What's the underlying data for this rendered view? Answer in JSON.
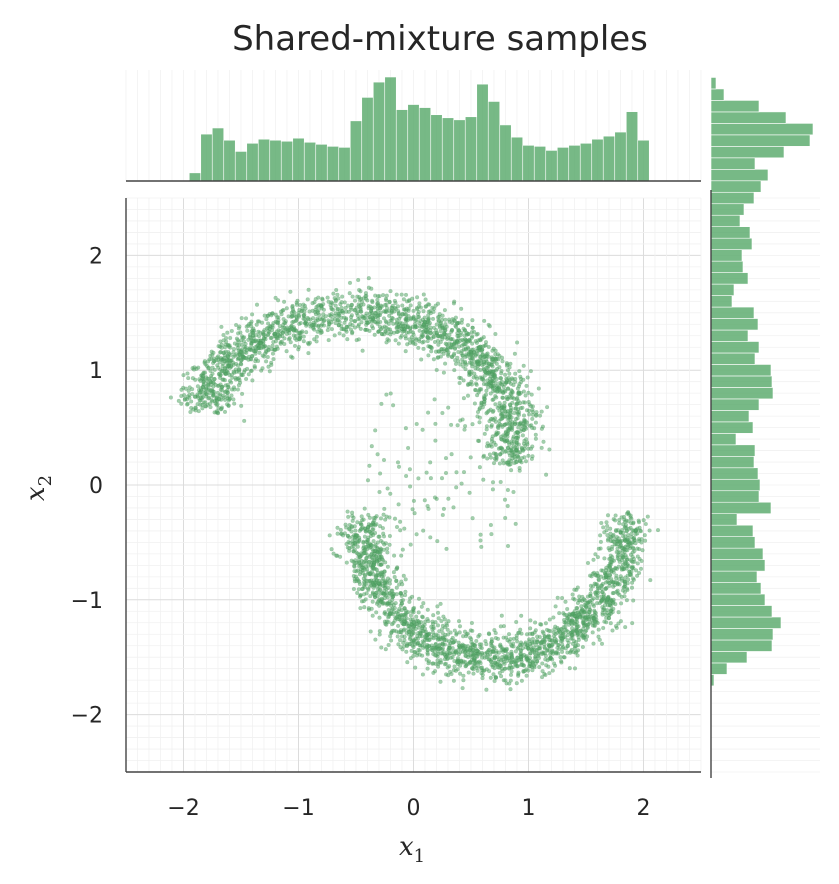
{
  "chart_data": {
    "type": "scatter",
    "title": "Shared-mixture samples",
    "xlabel": "x",
    "xlabel_sub": "1",
    "ylabel": "x",
    "ylabel_sub": "2",
    "xlim": [
      -2.5,
      2.5
    ],
    "ylim": [
      -2.5,
      2.5
    ],
    "xticks": [
      -2,
      -1,
      0,
      1,
      2
    ],
    "yticks": [
      -2,
      -1,
      0,
      1,
      2
    ],
    "xtick_labels": [
      "−2",
      "−1",
      "0",
      "1",
      "2"
    ],
    "ytick_labels": [
      "−2",
      "−1",
      "0",
      "1",
      "2"
    ],
    "grid": true,
    "minor_grid": true,
    "color": "#55a868",
    "marginals": "histogram",
    "n_samples_approx": 4000,
    "structure": "two interleaving half-moons",
    "upper_moon": {
      "center": [
        -0.5,
        0.4
      ],
      "radius": 1.1,
      "x_range": [
        -2.0,
        0.7
      ],
      "y_peak": 1.5
    },
    "lower_moon": {
      "center": [
        0.7,
        -0.3
      ],
      "radius": 1.15,
      "x_range": [
        -0.5,
        1.85
      ],
      "y_trough": -1.5
    },
    "top_histogram": {
      "bin_start": -1.95,
      "bin_width": 0.1,
      "counts": [
        8,
        46,
        52,
        40,
        29,
        37,
        41,
        40,
        39,
        42,
        38,
        36,
        34,
        33,
        59,
        82,
        97,
        102,
        70,
        75,
        72,
        65,
        62,
        60,
        63,
        95,
        78,
        55,
        43,
        35,
        34,
        30,
        33,
        35,
        37,
        41,
        44,
        48,
        68,
        40
      ]
    },
    "right_histogram": {
      "bin_start": -1.75,
      "bin_width": 0.1,
      "counts": [
        3,
        16,
        36,
        61,
        62,
        70,
        61,
        54,
        50,
        46,
        54,
        52,
        44,
        42,
        26,
        60,
        48,
        49,
        47,
        43,
        44,
        25,
        42,
        38,
        48,
        62,
        61,
        60,
        44,
        48,
        37,
        47,
        43,
        21,
        23,
        37,
        32,
        31,
        41,
        39,
        29,
        33,
        43,
        50,
        57,
        44,
        73,
        99,
        102,
        75,
        48,
        13,
        5
      ]
    }
  }
}
